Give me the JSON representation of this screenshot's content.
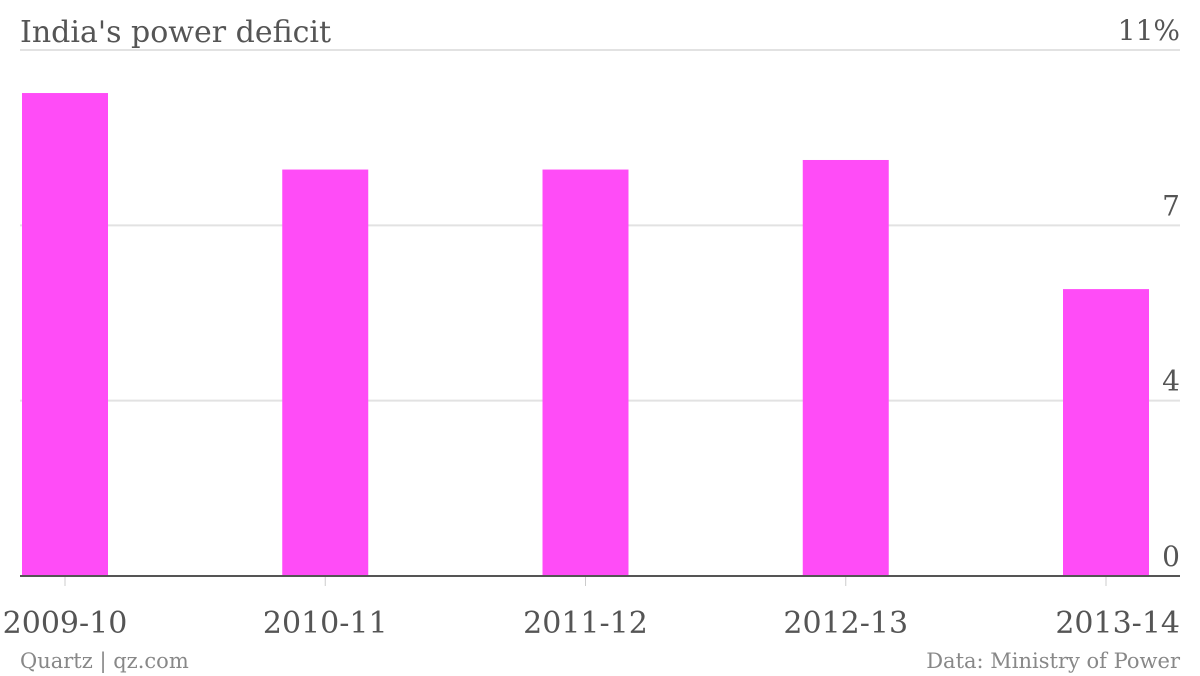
{
  "chart_data": {
    "type": "bar",
    "title": "India's power deficit",
    "categories": [
      "2009-10",
      "2010-11",
      "2011-12",
      "2012-13",
      "2013-14"
    ],
    "values": [
      10.1,
      8.5,
      8.5,
      8.7,
      6.0
    ],
    "color": "#ff4cf7",
    "ylim": [
      0,
      11
    ],
    "yticks": [
      0,
      {
        "value": 3.667,
        "label": "4"
      },
      {
        "value": 7.333,
        "label": "7"
      },
      {
        "value": 11,
        "label": "11%"
      }
    ],
    "grid": true,
    "credit": "Quartz | qz.com",
    "source": "Data: Ministry of Power"
  }
}
